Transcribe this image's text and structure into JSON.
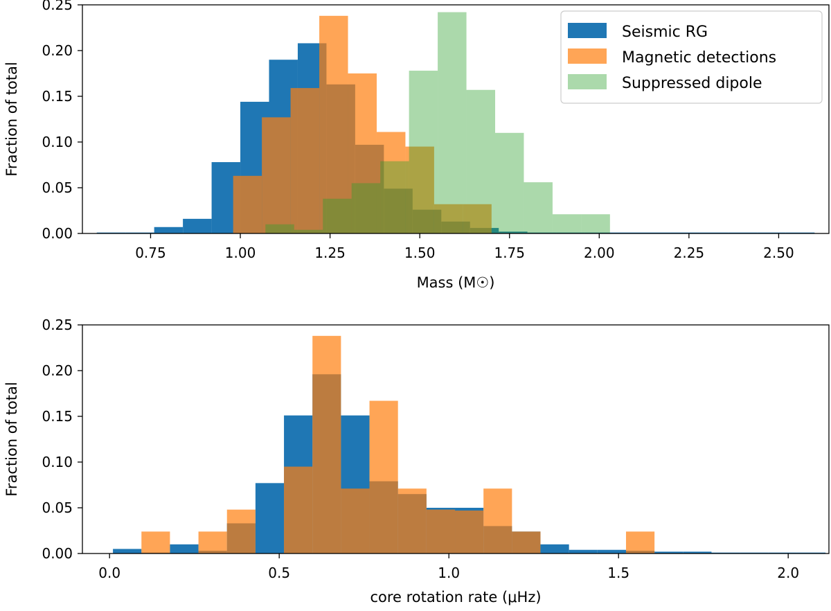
{
  "chart_data": [
    {
      "type": "bar",
      "subtype": "histogram",
      "xlabel": "Mass (M☉)",
      "ylabel": "Fraction of total",
      "xlim": [
        0.56,
        2.64
      ],
      "ylim": [
        0,
        0.25
      ],
      "xticks": [
        0.75,
        1.0,
        1.25,
        1.5,
        1.75,
        2.0,
        2.25,
        2.5
      ],
      "xtick_labels": [
        "0.75",
        "1.00",
        "1.25",
        "1.50",
        "1.75",
        "2.00",
        "2.25",
        "2.50"
      ],
      "yticks": [
        0,
        0.05,
        0.1,
        0.15,
        0.2,
        0.25
      ],
      "ytick_labels": [
        "0.00",
        "0.05",
        "0.10",
        "0.15",
        "0.20",
        "0.25"
      ],
      "legend_position": "top-right",
      "series": [
        {
          "name": "Seismic RG",
          "color": "#1f77b4",
          "opacity": 1.0,
          "bin_edges": [
            0.6,
            0.68,
            0.76,
            0.84,
            0.92,
            1.0,
            1.08,
            1.16,
            1.24,
            1.32,
            1.4,
            1.48,
            1.56,
            1.64,
            1.72,
            1.8,
            1.88,
            1.96,
            2.04,
            2.12,
            2.2,
            2.28,
            2.36,
            2.44,
            2.52,
            2.6
          ],
          "values": [
            0.001,
            0.001,
            0.007,
            0.016,
            0.078,
            0.144,
            0.19,
            0.208,
            0.163,
            0.097,
            0.049,
            0.026,
            0.013,
            0.006,
            0.002,
            0.001,
            0.001,
            0.001,
            0.001,
            0.001,
            0.001,
            0.001,
            0.001,
            0.001,
            0.001
          ]
        },
        {
          "name": "Magnetic detections",
          "color": "#ff7f0e",
          "opacity": 0.7,
          "bin_edges": [
            0.98,
            1.06,
            1.14,
            1.22,
            1.3,
            1.38,
            1.46,
            1.54,
            1.62,
            1.7
          ],
          "values": [
            0.063,
            0.127,
            0.159,
            0.238,
            0.175,
            0.111,
            0.095,
            0.032,
            0.032
          ]
        },
        {
          "name": "Suppressed dipole",
          "color": "#2ca02c",
          "opacity": 0.4,
          "bin_edges": [
            1.07,
            1.15,
            1.23,
            1.31,
            1.39,
            1.47,
            1.55,
            1.63,
            1.71,
            1.79,
            1.87,
            1.95,
            2.03
          ],
          "values": [
            0.01,
            0.004,
            0.038,
            0.055,
            0.079,
            0.178,
            0.242,
            0.157,
            0.11,
            0.056,
            0.021,
            0.021
          ]
        }
      ]
    },
    {
      "type": "bar",
      "subtype": "histogram",
      "xlabel": "core rotation rate (μHz)",
      "ylabel": "Fraction of total",
      "xlim": [
        -0.08,
        2.12
      ],
      "ylim": [
        0,
        0.25
      ],
      "xticks": [
        0.0,
        0.5,
        1.0,
        1.5,
        2.0
      ],
      "xtick_labels": [
        "0.0",
        "0.5",
        "1.0",
        "1.5",
        "2.0"
      ],
      "yticks": [
        0,
        0.05,
        0.1,
        0.15,
        0.2,
        0.25
      ],
      "ytick_labels": [
        "0.00",
        "0.05",
        "0.10",
        "0.15",
        "0.20",
        "0.25"
      ],
      "series": [
        {
          "name": "Seismic RG",
          "color": "#1f77b4",
          "opacity": 1.0,
          "bin_edges": [
            0.01,
            0.094,
            0.178,
            0.262,
            0.346,
            0.43,
            0.514,
            0.598,
            0.682,
            0.766,
            0.85,
            0.934,
            1.018,
            1.102,
            1.186,
            1.27,
            1.354,
            1.438,
            1.522,
            1.606,
            1.69,
            1.774,
            1.858,
            1.942,
            2.026,
            2.11
          ],
          "values": [
            0.005,
            0.001,
            0.01,
            0.003,
            0.033,
            0.077,
            0.151,
            0.196,
            0.151,
            0.079,
            0.065,
            0.05,
            0.05,
            0.03,
            0.024,
            0.01,
            0.004,
            0.004,
            0.003,
            0.002,
            0.002,
            0.001,
            0.001,
            0.001,
            0.001
          ]
        },
        {
          "name": "Magnetic detections",
          "color": "#ff7f0e",
          "opacity": 0.7,
          "bin_edges": [
            0.094,
            0.178,
            0.262,
            0.346,
            0.43,
            0.514,
            0.598,
            0.682,
            0.766,
            0.85,
            0.934,
            1.018,
            1.102,
            1.186,
            1.27,
            1.354,
            1.438,
            1.522,
            1.606
          ],
          "values": [
            0.024,
            0.0,
            0.024,
            0.048,
            0.0,
            0.095,
            0.238,
            0.071,
            0.167,
            0.071,
            0.048,
            0.047,
            0.071,
            0.024,
            0.0,
            0.0,
            0.0,
            0.024
          ]
        }
      ]
    }
  ]
}
